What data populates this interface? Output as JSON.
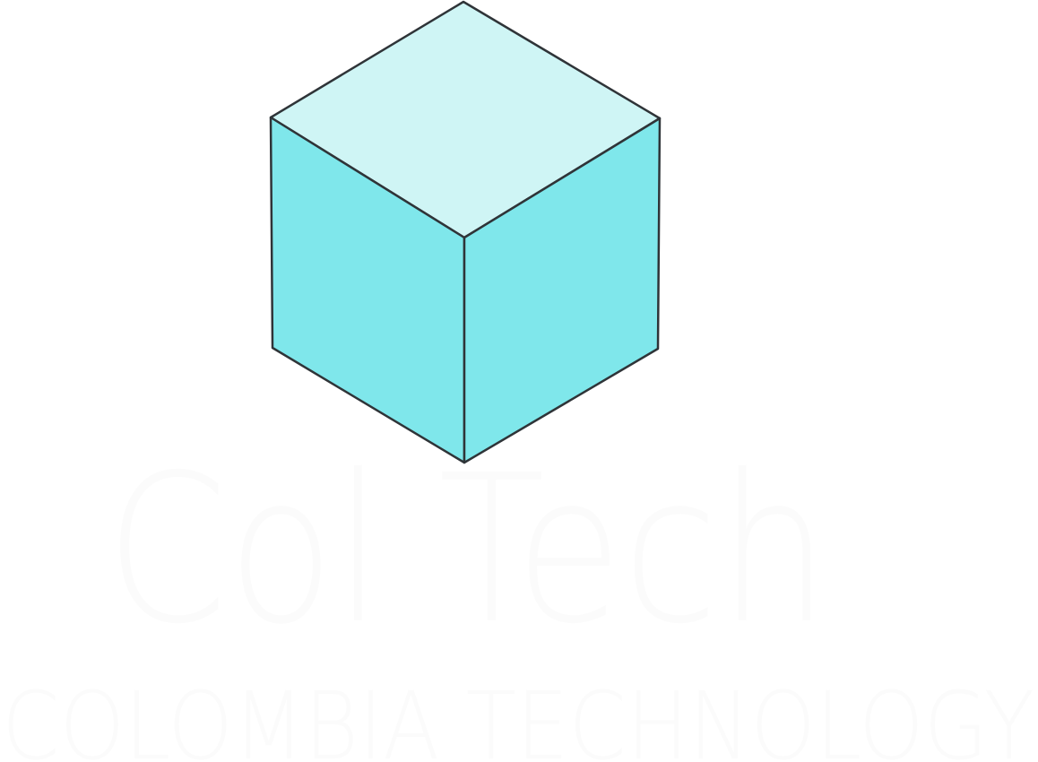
{
  "logo": {
    "name": "Col Tech",
    "tagline": "COLOMBIA TECHNOLOGY"
  }
}
